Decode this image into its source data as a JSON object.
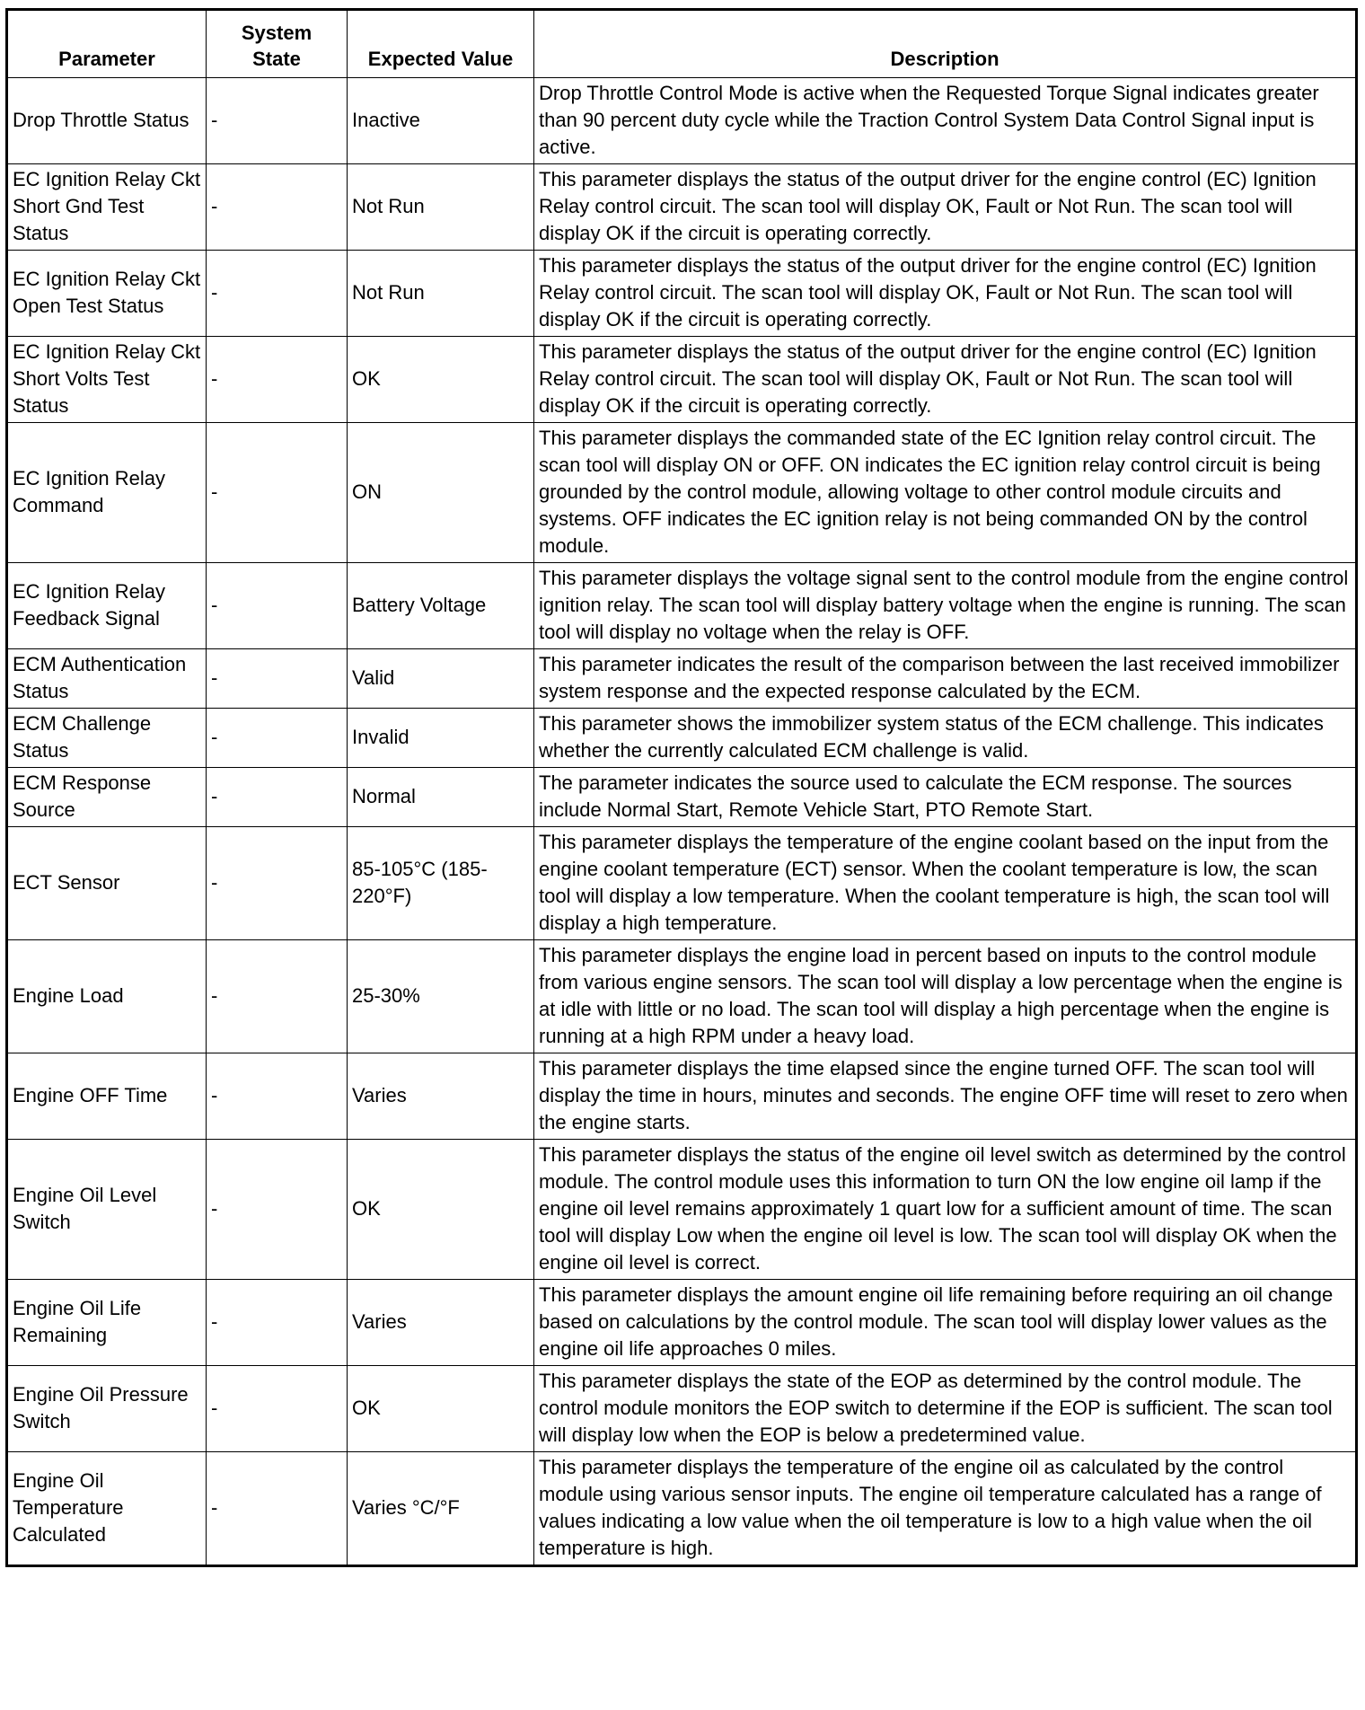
{
  "headers": [
    "Parameter",
    "System State",
    "Expected Value",
    "Description"
  ],
  "rows": [
    {
      "parameter": "Drop Throttle Status",
      "state": "-",
      "expected": "Inactive",
      "description": "Drop Throttle Control Mode is active when the Requested Torque Signal indicates greater than 90 percent duty cycle while the Traction Control System Data Control Signal input is active."
    },
    {
      "parameter": "EC Ignition Relay Ckt Short Gnd Test Status",
      "state": "-",
      "expected": "Not Run",
      "description": "This parameter displays the status of the output driver for the engine control (EC) Ignition Relay control circuit. The scan tool will display OK, Fault or Not Run. The scan tool will display OK if the circuit is operating correctly."
    },
    {
      "parameter": "EC Ignition Relay Ckt Open Test Status",
      "state": "-",
      "expected": "Not Run",
      "description": "This parameter displays the status of the output driver for the engine control (EC) Ignition Relay control circuit. The scan tool will display OK, Fault or Not Run. The scan tool will display OK if the circuit is operating correctly."
    },
    {
      "parameter": "EC Ignition Relay Ckt Short Volts Test Status",
      "state": "-",
      "expected": "OK",
      "description": "This parameter displays the status of the output driver for the engine control (EC) Ignition Relay control circuit. The scan tool will display OK, Fault or Not Run. The scan tool will display OK if the circuit is operating correctly."
    },
    {
      "parameter": "EC Ignition Relay Command",
      "state": "-",
      "expected": "ON",
      "description": "This parameter displays the commanded state of the EC Ignition relay control circuit. The scan tool will display ON or OFF. ON indicates the EC ignition relay control circuit is being grounded by the control module, allowing voltage to other control module circuits and systems. OFF indicates the EC ignition relay is not being commanded ON by the control module."
    },
    {
      "parameter": "EC Ignition Relay Feedback Signal",
      "state": "-",
      "expected": "Battery Voltage",
      "description": "This parameter displays the voltage signal sent to the control module from the engine control ignition relay. The scan tool will display battery voltage when the engine is running. The scan tool will display no voltage when the relay is OFF."
    },
    {
      "parameter": "ECM Authentication Status",
      "state": "-",
      "expected": "Valid",
      "description": "This parameter indicates the result of the comparison between the last received immobilizer system response and the expected response calculated by the ECM."
    },
    {
      "parameter": "ECM Challenge Status",
      "state": "-",
      "expected": "Invalid",
      "description": "This parameter shows the immobilizer system status of the ECM challenge. This indicates whether the currently calculated ECM challenge is valid."
    },
    {
      "parameter": "ECM Response Source",
      "state": "-",
      "expected": "Normal",
      "description": "The parameter indicates the source used to calculate the ECM response. The sources include Normal Start, Remote Vehicle Start, PTO Remote Start."
    },
    {
      "parameter": "ECT Sensor",
      "state": "-",
      "expected": "85-105°C (185-220°F)",
      "description": "This parameter displays the temperature of the engine coolant based on the input from the engine coolant temperature (ECT) sensor. When the coolant temperature is low, the scan tool will display a low temperature. When the coolant temperature is high, the scan tool will display a high temperature."
    },
    {
      "parameter": "Engine Load",
      "state": "-",
      "expected": "25-30%",
      "description": "This parameter displays the engine load in percent based on inputs to the control module from various engine sensors. The scan tool will display a low percentage when the engine is at idle with little or no load. The scan tool will display a high percentage when the engine is running at a high RPM under a heavy load."
    },
    {
      "parameter": "Engine OFF Time",
      "state": "-",
      "expected": "Varies",
      "description": "This parameter displays the time elapsed since the engine turned OFF. The scan tool will display the time in hours, minutes and seconds. The engine OFF time will reset to zero when the engine starts."
    },
    {
      "parameter": "Engine Oil Level Switch",
      "state": "-",
      "expected": "OK",
      "description": "This parameter displays the status of the engine oil level switch as determined by the control module. The control module uses this information to turn ON the low engine oil lamp if the engine oil level remains approximately 1 quart low for a sufficient amount of time. The scan tool will display Low when the engine oil level is low. The scan tool will display OK when the engine oil level is correct."
    },
    {
      "parameter": "Engine Oil Life Remaining",
      "state": "-",
      "expected": "Varies",
      "description": "This parameter displays the amount engine oil life remaining before requiring an oil change based on calculations by the control module. The scan tool will display lower values as the engine oil life approaches 0 miles."
    },
    {
      "parameter": "Engine Oil Pressure Switch",
      "state": "-",
      "expected": "OK",
      "description": "This parameter displays the state of the EOP as determined by the control module. The control module monitors the EOP switch to determine if the EOP is sufficient. The scan tool will display low when the EOP is below a predetermined value."
    },
    {
      "parameter": "Engine Oil Temperature Calculated",
      "state": "-",
      "expected": "Varies °C/°F",
      "description": "This parameter displays the temperature of the engine oil as calculated by the control module using various sensor inputs. The engine oil temperature calculated has a range of values indicating a low value when the oil temperature is low to a high value when the oil temperature is high."
    }
  ]
}
